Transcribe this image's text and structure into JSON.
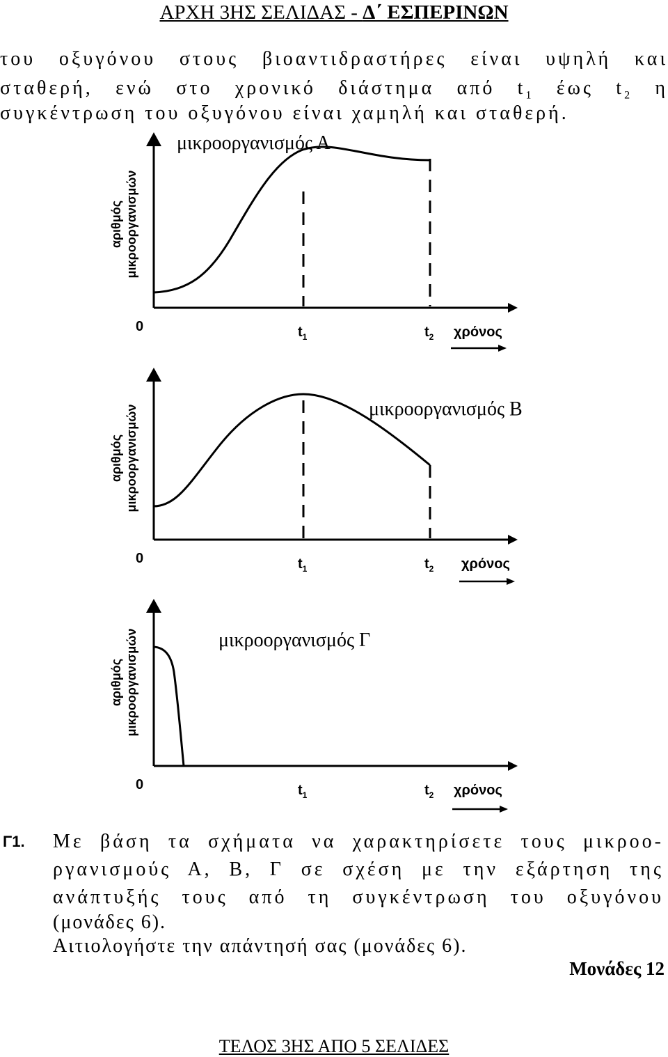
{
  "header": {
    "text": "ΑΡΧΗ 3ΗΣ ΣΕΛΙΔΑΣ - ",
    "bold": "Δ΄ ΕΣΠΕΡΙΝΩΝ"
  },
  "intro": {
    "line1": "του οξυγόνου στους βιοαντιδραστήρες είναι υψηλή και",
    "line2a": "σταθερή, ενώ στο χρονικό διάστημα από t",
    "line2b": "1",
    "line2c": " έως t",
    "line2d": "2",
    "line2e": " η",
    "line3": "συγκέντρωση του οξυγόνου είναι χαμηλή και σταθερή."
  },
  "graphs": [
    {
      "title": "μικροοργανισμός Α",
      "ylabel1": "αριθμός",
      "ylabel2": "μικροοργανισμών",
      "origin": "0",
      "t1": "t",
      "t1sub": "1",
      "t2": "t",
      "t2sub": "2",
      "xlabel": "χρόνος"
    },
    {
      "title": "μικροοργανισμός Β",
      "ylabel1": "αριθμός",
      "ylabel2": "μικροοργανισμών",
      "origin": "0",
      "t1": "t",
      "t1sub": "1",
      "t2": "t",
      "t2sub": "2",
      "xlabel": "χρόνος"
    },
    {
      "title": "μικροοργανισμός Γ",
      "ylabel1": "αριθμός",
      "ylabel2": "μικροοργανισμών",
      "origin": "0",
      "t1": "t",
      "t1sub": "1",
      "t2": "t",
      "t2sub": "2",
      "xlabel": "χρόνος"
    }
  ],
  "question": {
    "num": "Γ1.",
    "line1": "Με βάση τα σχήματα να χαρακτηρίσετε τους μικροο-",
    "line2": "ργανισμούς Α, Β, Γ σε σχέση με την εξάρτηση της",
    "line3": "ανάπτυξής τους από τη συγκέντρωση του οξυγόνου",
    "line4": "(μονάδες 6).",
    "line5": "Αιτιολογήστε την απάντησή σας (μονάδες 6)."
  },
  "marks": "Μονάδες 12",
  "footer": "ΤΕΛΟΣ 3ΗΣ ΑΠΟ 5 ΣΕΛΙΔΕΣ"
}
